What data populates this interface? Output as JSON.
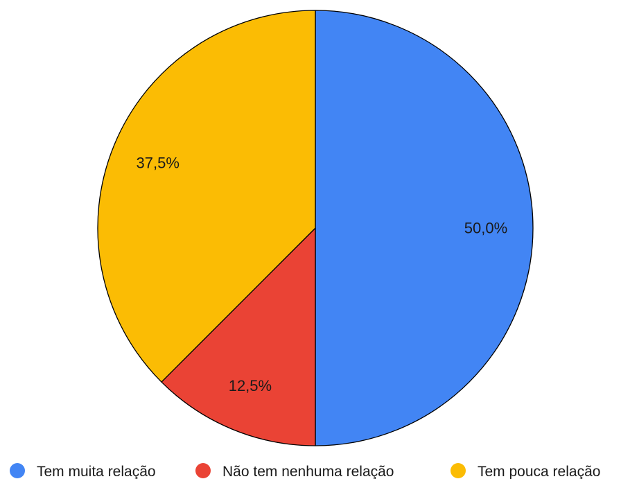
{
  "chart_data": {
    "type": "pie",
    "title": "",
    "start_angle_deg": 0,
    "direction": "clockwise",
    "legend_position": "bottom",
    "slices": [
      {
        "label": "Tem muita relação",
        "value": 50.0,
        "display": "50,0%",
        "color": "#4285F4"
      },
      {
        "label": "Não tem nenhuma relação",
        "value": 12.5,
        "display": "12,5%",
        "color": "#EA4335"
      },
      {
        "label": "Tem pouca relação",
        "value": 37.5,
        "display": "37,5%",
        "color": "#FBBC04"
      }
    ]
  }
}
